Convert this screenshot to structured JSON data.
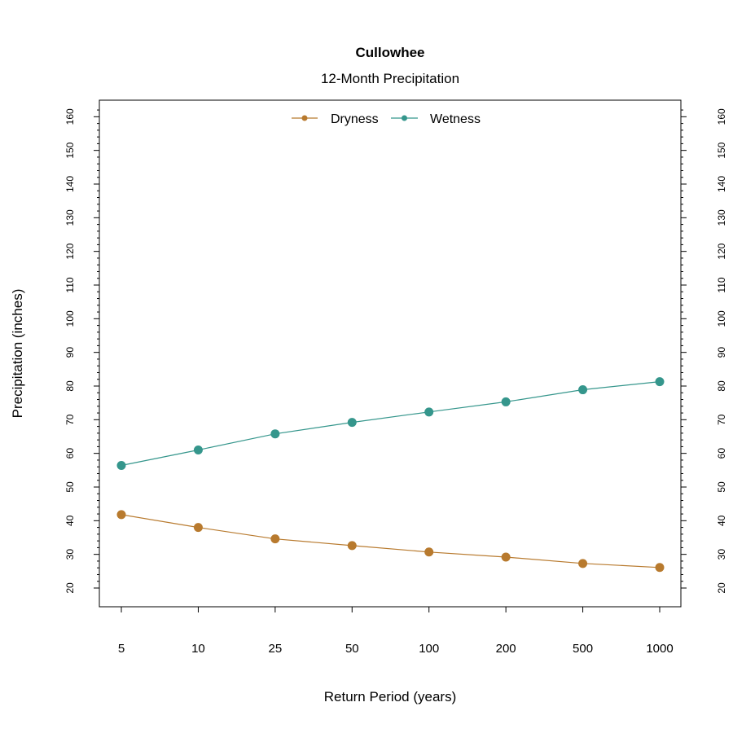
{
  "chart_data": {
    "type": "line",
    "title": "Cullowhee",
    "subtitle": "12-Month Precipitation",
    "xlabel": "Return Period (years)",
    "ylabel": "Precipitation (inches)",
    "categories": [
      "5",
      "10",
      "25",
      "50",
      "100",
      "200",
      "500",
      "1000"
    ],
    "ylim": [
      15,
      165
    ],
    "yticks": [
      20,
      30,
      40,
      50,
      60,
      70,
      80,
      90,
      100,
      110,
      120,
      130,
      140,
      150,
      160
    ],
    "right_axis": true,
    "grid": false,
    "legend_position": "top-center",
    "series": [
      {
        "name": "Dryness",
        "color": "#B87A2E",
        "values": [
          41.8,
          38.0,
          34.6,
          32.6,
          30.7,
          29.2,
          27.3,
          26.1
        ]
      },
      {
        "name": "Wetness",
        "color": "#35968C",
        "values": [
          56.4,
          61.0,
          65.8,
          69.2,
          72.3,
          75.3,
          78.9,
          81.3
        ]
      }
    ]
  }
}
